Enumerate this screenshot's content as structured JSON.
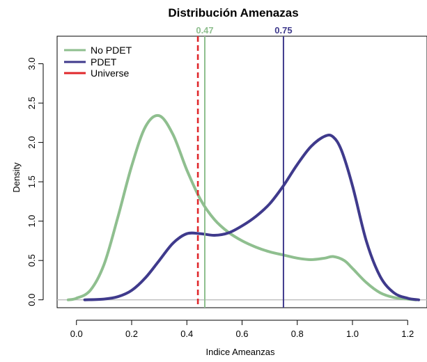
{
  "chart_data": {
    "type": "line",
    "title": "Distribución Amenazas",
    "xlabel": "Indice Ameanzas",
    "ylabel": "Density",
    "xlim": [
      -0.07,
      1.27
    ],
    "ylim": [
      -0.1,
      3.35
    ],
    "x_ticks": [
      "0.0",
      "0.2",
      "0.4",
      "0.6",
      "0.8",
      "1.0",
      "1.2"
    ],
    "y_ticks": [
      "0.0",
      "0.5",
      "1.0",
      "1.5",
      "2.0",
      "2.5",
      "3.0"
    ],
    "grid": false,
    "legend_position": "top-left",
    "series": [
      {
        "name": "No PDET",
        "color": "#8fbf8f",
        "x": [
          -0.03,
          0.0,
          0.05,
          0.1,
          0.15,
          0.2,
          0.25,
          0.3,
          0.35,
          0.4,
          0.45,
          0.5,
          0.55,
          0.6,
          0.65,
          0.7,
          0.75,
          0.8,
          0.85,
          0.9,
          0.93,
          0.97,
          1.0,
          1.05,
          1.1,
          1.15,
          1.2,
          1.23
        ],
        "y": [
          0.0,
          0.02,
          0.12,
          0.45,
          1.05,
          1.7,
          2.2,
          2.34,
          2.1,
          1.65,
          1.27,
          1.02,
          0.86,
          0.75,
          0.67,
          0.61,
          0.57,
          0.53,
          0.51,
          0.53,
          0.55,
          0.5,
          0.4,
          0.22,
          0.09,
          0.03,
          0.01,
          0.0
        ]
      },
      {
        "name": "PDET",
        "color": "#3f3a8c",
        "x": [
          0.03,
          0.1,
          0.15,
          0.2,
          0.25,
          0.3,
          0.35,
          0.4,
          0.45,
          0.5,
          0.55,
          0.6,
          0.65,
          0.7,
          0.75,
          0.8,
          0.85,
          0.9,
          0.93,
          0.96,
          1.0,
          1.05,
          1.1,
          1.15,
          1.2,
          1.24
        ],
        "y": [
          0.0,
          0.01,
          0.04,
          0.12,
          0.28,
          0.5,
          0.72,
          0.84,
          0.84,
          0.82,
          0.85,
          0.94,
          1.06,
          1.22,
          1.45,
          1.72,
          1.95,
          2.08,
          2.07,
          1.9,
          1.45,
          0.75,
          0.3,
          0.09,
          0.02,
          0.0
        ]
      }
    ],
    "reference_lines": [
      {
        "name": "Universe",
        "x": 0.44,
        "color": "#e0282c",
        "style": "dashed",
        "label": ""
      },
      {
        "name": "No PDET",
        "x": 0.465,
        "color": "#8fbf8f",
        "style": "solid",
        "label": "0.47"
      },
      {
        "name": "PDET",
        "x": 0.75,
        "color": "#3f3a8c",
        "style": "solid",
        "label": "0.75"
      }
    ],
    "baseline_color": "#bdbdbd",
    "legend": [
      {
        "label": "No PDET",
        "color": "#8fbf8f"
      },
      {
        "label": "PDET",
        "color": "#3f3a8c"
      },
      {
        "label": "Universe",
        "color": "#e0282c"
      }
    ]
  }
}
